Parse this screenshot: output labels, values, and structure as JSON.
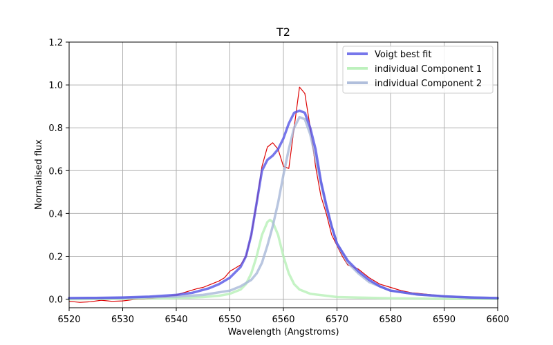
{
  "chart_data": {
    "type": "line",
    "title": "T2",
    "xlabel": "Wavelength (Angstroms)",
    "ylabel": "Normalised flux",
    "xlim": [
      6520,
      6600
    ],
    "ylim": [
      -0.04,
      1.2
    ],
    "xticks": [
      6520,
      6530,
      6540,
      6550,
      6560,
      6570,
      6580,
      6590,
      6600
    ],
    "xtick_labels": [
      "6520",
      "6530",
      "6540",
      "6550",
      "6560",
      "6570",
      "6580",
      "6590",
      "6600"
    ],
    "yticks": [
      0.0,
      0.2,
      0.4,
      0.6,
      0.8,
      1.0,
      1.2
    ],
    "ytick_labels": [
      "0.0",
      "0.2",
      "0.4",
      "0.6",
      "0.8",
      "1.0",
      "1.2"
    ],
    "grid": true,
    "legend_position": "top-right",
    "observed": {
      "color": "#dd0000",
      "x": [
        6520,
        6522,
        6524,
        6526,
        6528,
        6530,
        6532,
        6534,
        6536,
        6538,
        6540,
        6542,
        6544,
        6545,
        6546,
        6547,
        6548,
        6549,
        6550,
        6551,
        6552,
        6553,
        6554,
        6555,
        6556,
        6557,
        6558,
        6559,
        6560,
        6561,
        6562,
        6563,
        6564,
        6565,
        6566,
        6567,
        6568,
        6569,
        6570,
        6571,
        6572,
        6573,
        6574,
        6575,
        6576,
        6578,
        6580,
        6582,
        6584,
        6586,
        6588,
        6590,
        6592,
        6594,
        6596,
        6598,
        6600
      ],
      "y": [
        -0.01,
        -0.015,
        -0.012,
        -0.005,
        -0.01,
        -0.008,
        -0.002,
        0.0,
        0.005,
        0.012,
        0.02,
        0.035,
        0.05,
        0.055,
        0.065,
        0.075,
        0.085,
        0.1,
        0.13,
        0.145,
        0.16,
        0.2,
        0.3,
        0.45,
        0.62,
        0.71,
        0.73,
        0.7,
        0.62,
        0.61,
        0.8,
        0.99,
        0.96,
        0.8,
        0.62,
        0.48,
        0.4,
        0.3,
        0.25,
        0.2,
        0.16,
        0.15,
        0.14,
        0.12,
        0.1,
        0.07,
        0.055,
        0.04,
        0.03,
        0.025,
        0.02,
        0.012,
        0.008,
        0.005,
        0.004,
        0.003,
        0.002
      ]
    },
    "series": [
      {
        "name": "Voigt best fit",
        "color": "#5555e6",
        "x": [
          6520,
          6525,
          6530,
          6535,
          6540,
          6543,
          6546,
          6548,
          6550,
          6552,
          6553,
          6554,
          6555,
          6556,
          6557,
          6558,
          6559,
          6560,
          6561,
          6562,
          6563,
          6564,
          6565,
          6566,
          6567,
          6568,
          6569,
          6570,
          6572,
          6574,
          6576,
          6578,
          6580,
          6585,
          6590,
          6595,
          6600
        ],
        "y": [
          0.005,
          0.006,
          0.008,
          0.012,
          0.02,
          0.03,
          0.05,
          0.07,
          0.1,
          0.15,
          0.2,
          0.3,
          0.45,
          0.6,
          0.65,
          0.67,
          0.7,
          0.75,
          0.82,
          0.87,
          0.88,
          0.87,
          0.8,
          0.7,
          0.55,
          0.44,
          0.34,
          0.26,
          0.18,
          0.13,
          0.09,
          0.06,
          0.04,
          0.022,
          0.013,
          0.008,
          0.005
        ]
      },
      {
        "name": "individual Component 1",
        "color": "#b6f0b6",
        "x": [
          6520,
          6530,
          6540,
          6545,
          6548,
          6550,
          6552,
          6553,
          6554,
          6555,
          6556,
          6557,
          6557.5,
          6558,
          6559,
          6560,
          6561,
          6562,
          6563,
          6565,
          6570,
          6580,
          6590,
          6600
        ],
        "y": [
          0.0,
          0.002,
          0.005,
          0.01,
          0.016,
          0.025,
          0.045,
          0.07,
          0.12,
          0.2,
          0.3,
          0.36,
          0.37,
          0.36,
          0.3,
          0.2,
          0.12,
          0.07,
          0.045,
          0.025,
          0.01,
          0.004,
          0.002,
          0.001
        ]
      },
      {
        "name": "individual Component 2",
        "color": "#a8b8d8",
        "x": [
          6520,
          6530,
          6540,
          6545,
          6550,
          6552,
          6554,
          6555,
          6556,
          6557,
          6558,
          6559,
          6560,
          6561,
          6562,
          6563,
          6564,
          6565,
          6566,
          6567,
          6568,
          6569,
          6570,
          6572,
          6574,
          6576,
          6580,
          6585,
          6590,
          6595,
          6600
        ],
        "y": [
          0.004,
          0.006,
          0.012,
          0.02,
          0.04,
          0.06,
          0.09,
          0.12,
          0.17,
          0.25,
          0.34,
          0.45,
          0.58,
          0.7,
          0.8,
          0.85,
          0.84,
          0.77,
          0.66,
          0.54,
          0.43,
          0.34,
          0.26,
          0.17,
          0.12,
          0.08,
          0.04,
          0.022,
          0.013,
          0.008,
          0.005
        ]
      }
    ]
  }
}
